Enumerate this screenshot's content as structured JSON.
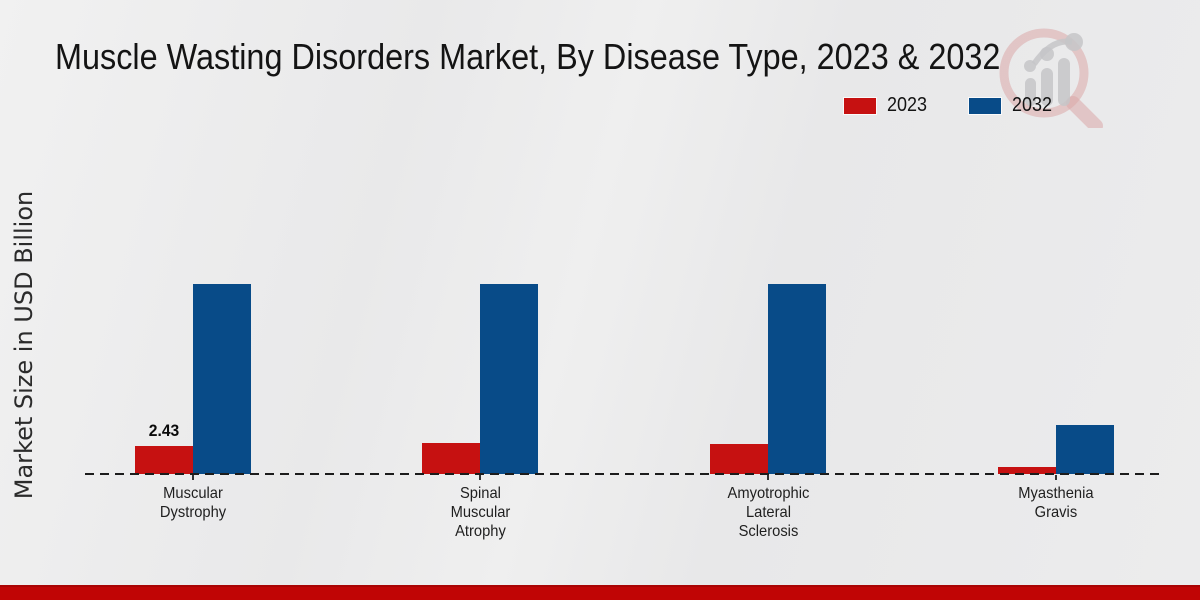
{
  "page": {
    "title": "Muscle Wasting Disorders Market, By Disease Type, 2023 & 2032",
    "footer_color": "#c00505",
    "background_color": "#eaeaeb"
  },
  "legend": {
    "items": [
      {
        "label": "2023",
        "color": "#c61111"
      },
      {
        "label": "2032",
        "color": "#084b88"
      }
    ]
  },
  "chart_data": {
    "type": "bar",
    "title": "Muscle Wasting Disorders Market, By Disease Type, 2023 & 2032",
    "xlabel": "",
    "ylabel": "Market Size in USD Billion",
    "grid": false,
    "legend_position": "top-right",
    "baseline_style": "dashed",
    "categories": [
      "Muscular Dystrophy",
      "Spinal Muscular Atrophy",
      "Amyotrophic Lateral Sclerosis",
      "Myasthenia Gravis"
    ],
    "category_lines": [
      [
        "Muscular",
        "Dystrophy"
      ],
      [
        "Spinal",
        "Muscular",
        "Atrophy"
      ],
      [
        "Amyotrophic",
        "Lateral",
        "Sclerosis"
      ],
      [
        "Myasthenia",
        "Gravis"
      ]
    ],
    "series": [
      {
        "name": "2023",
        "color": "#c61111",
        "values": [
          2.43,
          2.7,
          2.6,
          0.65
        ],
        "data_labels": [
          "2.43",
          "",
          "",
          ""
        ]
      },
      {
        "name": "2032",
        "color": "#084b88",
        "values": [
          16.5,
          16.5,
          16.5,
          4.25
        ],
        "data_labels": [
          "",
          "",
          "",
          ""
        ]
      }
    ],
    "ylim": [
      0,
      18
    ],
    "y_axis_ticks_visible": false
  }
}
